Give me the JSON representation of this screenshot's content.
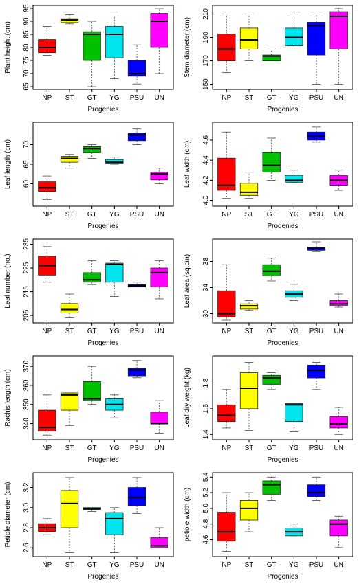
{
  "figure": {
    "colors": {
      "NP": "#ff0000",
      "ST": "#ffff00",
      "GT": "#00c000",
      "YG": "#00e5ee",
      "PSU": "#0000ff",
      "UN": "#ff00ff"
    }
  },
  "chart_data": [
    {
      "type": "boxplot",
      "title": "",
      "xlabel": "Progenies",
      "ylabel": "Plant height (cm)",
      "ylim": [
        65,
        95
      ],
      "yticks": [
        65,
        70,
        75,
        80,
        85,
        90,
        95
      ],
      "categories": [
        "NP",
        "ST",
        "GT",
        "YG",
        "PSU",
        "UN"
      ],
      "series": [
        {
          "category": "NP",
          "min": 77,
          "q1": 78,
          "median": 80,
          "q3": 83,
          "max": 88
        },
        {
          "category": "ST",
          "min": 89,
          "q1": 89.5,
          "median": 90.5,
          "q3": 91,
          "max": 92.5
        },
        {
          "category": "GT",
          "min": 65,
          "q1": 75,
          "median": 85,
          "q3": 86,
          "max": 90
        },
        {
          "category": "YG",
          "min": 68,
          "q1": 76,
          "median": 85,
          "q3": 88,
          "max": 92
        },
        {
          "category": "PSU",
          "min": 66,
          "q1": 69,
          "median": 70,
          "q3": 75,
          "max": 81
        },
        {
          "category": "UN",
          "min": 70,
          "q1": 80,
          "median": 90,
          "q3": 93,
          "max": 95
        }
      ]
    },
    {
      "type": "boxplot",
      "title": "",
      "xlabel": "Progenies",
      "ylabel": "Stem diameter (cm)",
      "ylim": [
        148,
        215
      ],
      "yticks": [
        150,
        170,
        190,
        210
      ],
      "categories": [
        "NP",
        "ST",
        "GT",
        "YG",
        "PSU",
        "UN"
      ],
      "series": [
        {
          "category": "NP",
          "min": 160,
          "q1": 170,
          "median": 180,
          "q3": 193,
          "max": 210
        },
        {
          "category": "ST",
          "min": 170,
          "q1": 180,
          "median": 188,
          "q3": 198,
          "max": 210
        },
        {
          "category": "GT",
          "min": 170,
          "q1": 170,
          "median": 174,
          "q3": 175,
          "max": 180
        },
        {
          "category": "YG",
          "min": 180,
          "q1": 183,
          "median": 190,
          "q3": 198,
          "max": 210
        },
        {
          "category": "PSU",
          "min": 150,
          "q1": 175,
          "median": 200,
          "q3": 203,
          "max": 210
        },
        {
          "category": "UN",
          "min": 150,
          "q1": 180,
          "median": 208,
          "q3": 212,
          "max": 215
        }
      ]
    },
    {
      "type": "boxplot",
      "title": "",
      "xlabel": "Progenies",
      "ylabel": "Leaf length (cm)",
      "ylim": [
        55,
        75
      ],
      "yticks": [
        60,
        65,
        70
      ],
      "categories": [
        "NP",
        "ST",
        "GT",
        "YG",
        "PSU",
        "UN"
      ],
      "series": [
        {
          "category": "NP",
          "min": 56,
          "q1": 58,
          "median": 59,
          "q3": 60.5,
          "max": 62
        },
        {
          "category": "ST",
          "min": 64,
          "q1": 65.5,
          "median": 66.5,
          "q3": 67,
          "max": 67.5
        },
        {
          "category": "GT",
          "min": 66.5,
          "q1": 68,
          "median": 69,
          "q3": 69.5,
          "max": 70
        },
        {
          "category": "YG",
          "min": 65,
          "q1": 65.2,
          "median": 65.5,
          "q3": 66.2,
          "max": 66.8
        },
        {
          "category": "PSU",
          "min": 70,
          "q1": 71,
          "median": 72.5,
          "q3": 73,
          "max": 74
        },
        {
          "category": "UN",
          "min": 60,
          "q1": 61,
          "median": 62.5,
          "q3": 63,
          "max": 64
        }
      ]
    },
    {
      "type": "boxplot",
      "title": "",
      "xlabel": "Progenies",
      "ylabel": "Leaf width (cm)",
      "ylim": [
        3.97,
        4.75
      ],
      "yticks": [
        4.0,
        4.2,
        4.4,
        4.6
      ],
      "categories": [
        "NP",
        "ST",
        "GT",
        "YG",
        "PSU",
        "UN"
      ],
      "series": [
        {
          "category": "NP",
          "min": 4.02,
          "q1": 4.1,
          "median": 4.15,
          "q3": 4.42,
          "max": 4.68
        },
        {
          "category": "ST",
          "min": 4.02,
          "q1": 4.05,
          "median": 4.08,
          "q3": 4.17,
          "max": 4.28
        },
        {
          "category": "GT",
          "min": 4.2,
          "q1": 4.28,
          "median": 4.35,
          "q3": 4.48,
          "max": 4.62
        },
        {
          "category": "YG",
          "min": 4.18,
          "q1": 4.18,
          "median": 4.2,
          "q3": 4.25,
          "max": 4.3
        },
        {
          "category": "PSU",
          "min": 4.58,
          "q1": 4.6,
          "median": 4.64,
          "q3": 4.68,
          "max": 4.73
        },
        {
          "category": "UN",
          "min": 4.1,
          "q1": 4.15,
          "median": 4.2,
          "q3": 4.25,
          "max": 4.3
        }
      ]
    },
    {
      "type": "boxplot",
      "title": "",
      "xlabel": "Progenies",
      "ylabel": "Leaf number (no.)",
      "ylim": [
        203,
        236
      ],
      "yticks": [
        205,
        215,
        225,
        235
      ],
      "categories": [
        "NP",
        "ST",
        "GT",
        "YG",
        "PSU",
        "UN"
      ],
      "series": [
        {
          "category": "NP",
          "min": 219,
          "q1": 222,
          "median": 226,
          "q3": 230,
          "max": 234
        },
        {
          "category": "ST",
          "min": 204,
          "q1": 206,
          "median": 207.5,
          "q3": 210,
          "max": 214
        },
        {
          "category": "GT",
          "min": 218,
          "q1": 219,
          "median": 220,
          "q3": 223,
          "max": 228
        },
        {
          "category": "YG",
          "min": 213,
          "q1": 219,
          "median": 226.5,
          "q3": 227,
          "max": 228
        },
        {
          "category": "PSU",
          "min": 217,
          "q1": 217,
          "median": 217.5,
          "q3": 218,
          "max": 219
        },
        {
          "category": "UN",
          "min": 212,
          "q1": 217,
          "median": 223,
          "q3": 225,
          "max": 228
        }
      ]
    },
    {
      "type": "boxplot",
      "title": "",
      "xlabel": "Progenies",
      "ylabel": "Leaf area (sq.cm)",
      "ylim": [
        29,
        41
      ],
      "yticks": [
        30,
        34,
        38
      ],
      "categories": [
        "NP",
        "ST",
        "GT",
        "YG",
        "PSU",
        "UN"
      ],
      "series": [
        {
          "category": "NP",
          "min": 29,
          "q1": 29.5,
          "median": 30,
          "q3": 33.5,
          "max": 37.5
        },
        {
          "category": "ST",
          "min": 30.5,
          "q1": 30.7,
          "median": 31.2,
          "q3": 31.5,
          "max": 32
        },
        {
          "category": "GT",
          "min": 35,
          "q1": 35.8,
          "median": 36.5,
          "q3": 37.5,
          "max": 38.5
        },
        {
          "category": "YG",
          "min": 32,
          "q1": 32.5,
          "median": 33,
          "q3": 33.5,
          "max": 34.5
        },
        {
          "category": "PSU",
          "min": 39.5,
          "q1": 39.7,
          "median": 40,
          "q3": 40.2,
          "max": 41
        },
        {
          "category": "UN",
          "min": 31,
          "q1": 31.2,
          "median": 31.5,
          "q3": 32,
          "max": 33
        }
      ]
    },
    {
      "type": "boxplot",
      "title": "",
      "xlabel": "Progenies",
      "ylabel": "Rachis length (cm)",
      "ylim": [
        333,
        374
      ],
      "yticks": [
        340,
        350,
        360,
        370
      ],
      "categories": [
        "NP",
        "ST",
        "GT",
        "YG",
        "PSU",
        "UN"
      ],
      "series": [
        {
          "category": "NP",
          "min": 334,
          "q1": 336,
          "median": 338,
          "q3": 347,
          "max": 355
        },
        {
          "category": "ST",
          "min": 339,
          "q1": 347,
          "median": 355,
          "q3": 356,
          "max": 356
        },
        {
          "category": "GT",
          "min": 350,
          "q1": 352,
          "median": 353,
          "q3": 362,
          "max": 370
        },
        {
          "category": "YG",
          "min": 343,
          "q1": 347,
          "median": 350,
          "q3": 353,
          "max": 355
        },
        {
          "category": "PSU",
          "min": 364,
          "q1": 365,
          "median": 368,
          "q3": 369,
          "max": 373
        },
        {
          "category": "UN",
          "min": 335,
          "q1": 340,
          "median": 340,
          "q3": 346,
          "max": 352
        }
      ]
    },
    {
      "type": "boxplot",
      "title": "",
      "xlabel": "Progenies",
      "ylabel": "Leaf dry weight (kg)",
      "ylim": [
        1.38,
        1.99
      ],
      "yticks": [
        1.4,
        1.6,
        1.8
      ],
      "categories": [
        "NP",
        "ST",
        "GT",
        "YG",
        "PSU",
        "UN"
      ],
      "series": [
        {
          "category": "NP",
          "min": 1.45,
          "q1": 1.5,
          "median": 1.55,
          "q3": 1.63,
          "max": 1.75
        },
        {
          "category": "ST",
          "min": 1.43,
          "q1": 1.6,
          "median": 1.76,
          "q3": 1.88,
          "max": 1.96
        },
        {
          "category": "GT",
          "min": 1.75,
          "q1": 1.79,
          "median": 1.84,
          "q3": 1.86,
          "max": 1.88
        },
        {
          "category": "YG",
          "min": 1.42,
          "q1": 1.5,
          "median": 1.63,
          "q3": 1.64,
          "max": 1.64
        },
        {
          "category": "PSU",
          "min": 1.75,
          "q1": 1.84,
          "median": 1.9,
          "q3": 1.94,
          "max": 1.96
        },
        {
          "category": "UN",
          "min": 1.4,
          "q1": 1.45,
          "median": 1.48,
          "q3": 1.54,
          "max": 1.61
        }
      ]
    },
    {
      "type": "boxplot",
      "title": "",
      "xlabel": "Progenies",
      "ylabel": "Petiole diameter (cm)",
      "ylim": [
        2.54,
        3.32
      ],
      "yticks": [
        2.6,
        2.8,
        3.0,
        3.2
      ],
      "categories": [
        "NP",
        "ST",
        "GT",
        "YG",
        "PSU",
        "UN"
      ],
      "series": [
        {
          "category": "NP",
          "min": 2.73,
          "q1": 2.76,
          "median": 2.8,
          "q3": 2.84,
          "max": 2.89
        },
        {
          "category": "ST",
          "min": 2.55,
          "q1": 2.8,
          "median": 3.04,
          "q3": 3.17,
          "max": 3.3
        },
        {
          "category": "GT",
          "min": 2.96,
          "q1": 2.98,
          "median": 2.99,
          "q3": 3.0,
          "max": 3.0
        },
        {
          "category": "YG",
          "min": 2.55,
          "q1": 2.73,
          "median": 2.89,
          "q3": 2.95,
          "max": 3.0
        },
        {
          "category": "PSU",
          "min": 2.94,
          "q1": 3.02,
          "median": 3.1,
          "q3": 3.2,
          "max": 3.3
        },
        {
          "category": "UN",
          "min": 2.6,
          "q1": 2.6,
          "median": 2.62,
          "q3": 2.7,
          "max": 2.8
        }
      ]
    },
    {
      "type": "boxplot",
      "title": "",
      "xlabel": "Progenies",
      "ylabel": "petiole width (cm)",
      "ylim": [
        4.42,
        5.42
      ],
      "yticks": [
        4.6,
        4.8,
        5.0,
        5.2,
        5.4
      ],
      "categories": [
        "NP",
        "ST",
        "GT",
        "YG",
        "PSU",
        "UN"
      ],
      "series": [
        {
          "category": "NP",
          "min": 4.45,
          "q1": 4.58,
          "median": 4.7,
          "q3": 4.95,
          "max": 5.2
        },
        {
          "category": "ST",
          "min": 4.7,
          "q1": 4.85,
          "median": 5.0,
          "q3": 5.1,
          "max": 5.2
        },
        {
          "category": "GT",
          "min": 5.1,
          "q1": 5.18,
          "median": 5.3,
          "q3": 5.35,
          "max": 5.4
        },
        {
          "category": "YG",
          "min": 4.65,
          "q1": 4.65,
          "median": 4.7,
          "q3": 4.75,
          "max": 4.8
        },
        {
          "category": "PSU",
          "min": 5.1,
          "q1": 5.15,
          "median": 5.2,
          "q3": 5.3,
          "max": 5.4
        },
        {
          "category": "UN",
          "min": 4.5,
          "q1": 4.65,
          "median": 4.8,
          "q3": 4.85,
          "max": 4.9
        }
      ]
    }
  ]
}
